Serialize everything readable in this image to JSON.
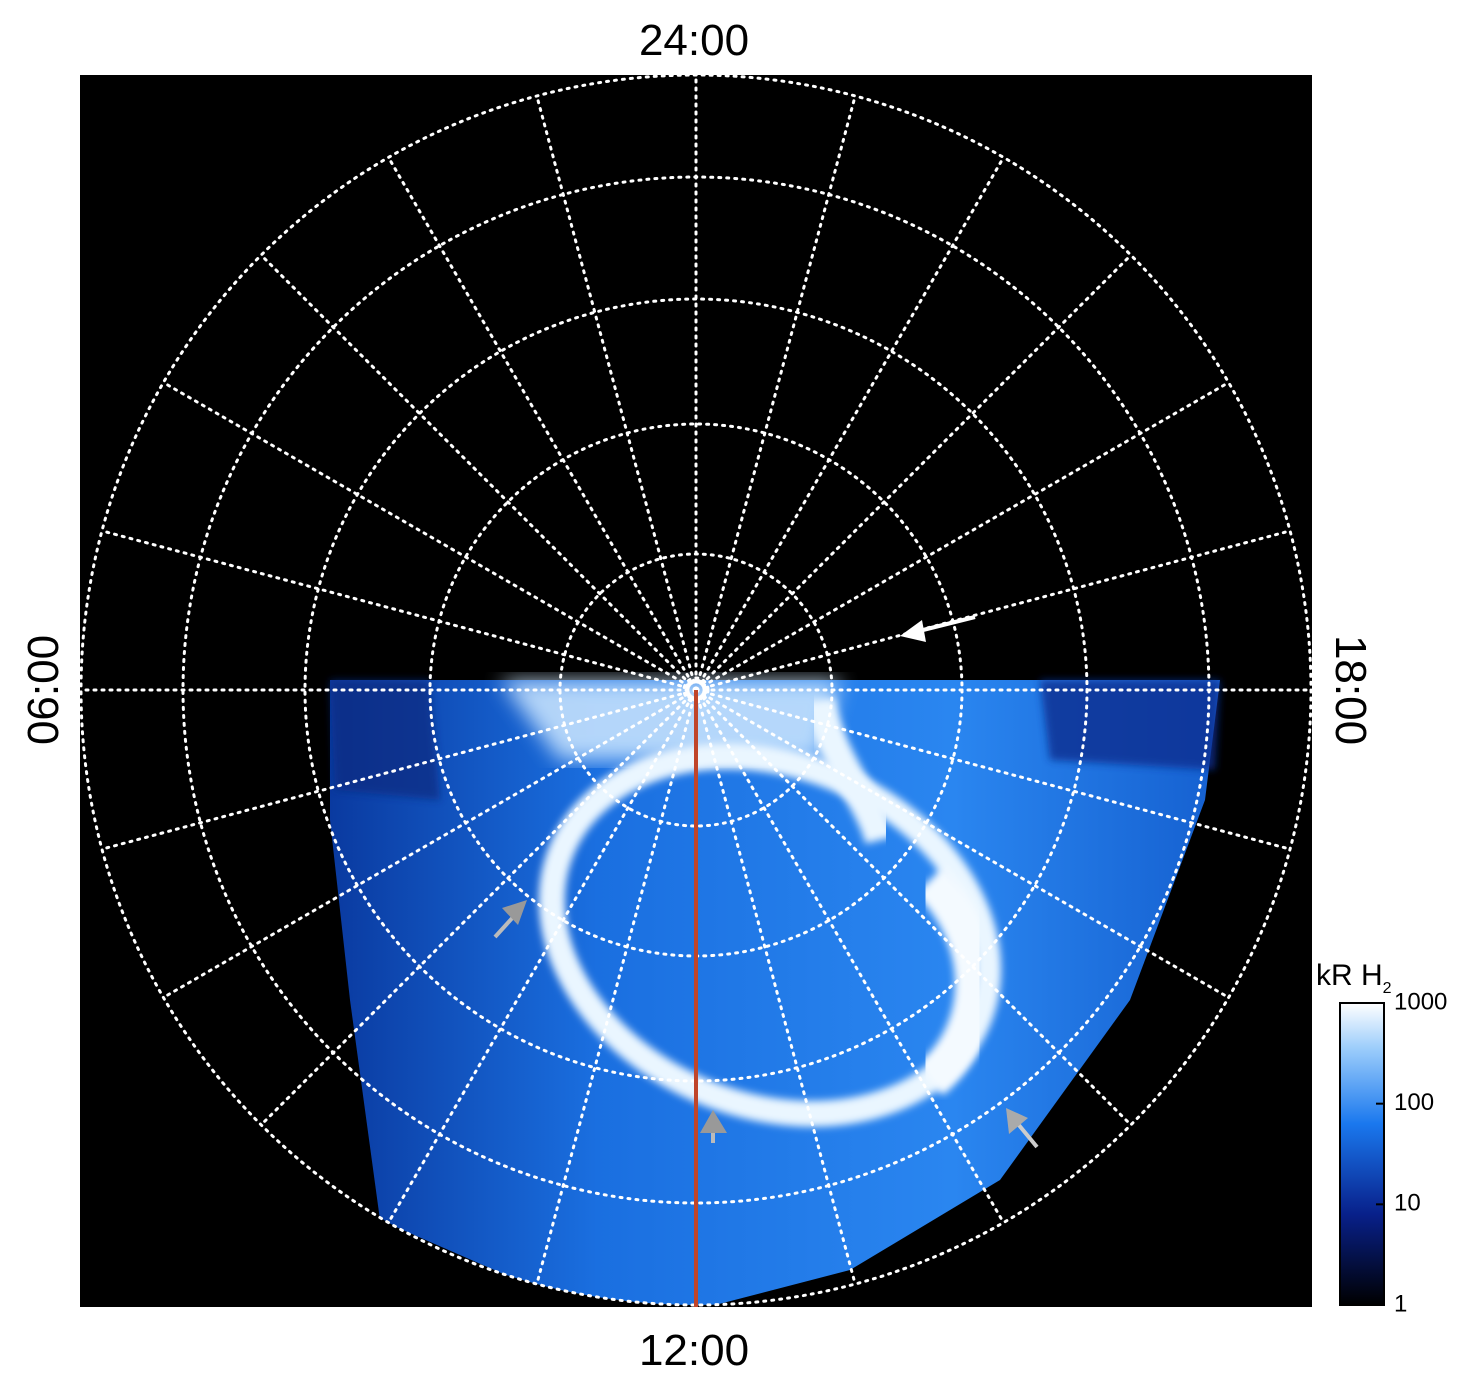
{
  "labels": {
    "top": "24:00",
    "bottom": "12:00",
    "left": "06:00",
    "right": "18:00"
  },
  "colorbar": {
    "title": "kR H",
    "title_sub": "2",
    "ticks": [
      1,
      10,
      100,
      1000
    ],
    "range": [
      1,
      1000
    ],
    "log": true
  }
}
